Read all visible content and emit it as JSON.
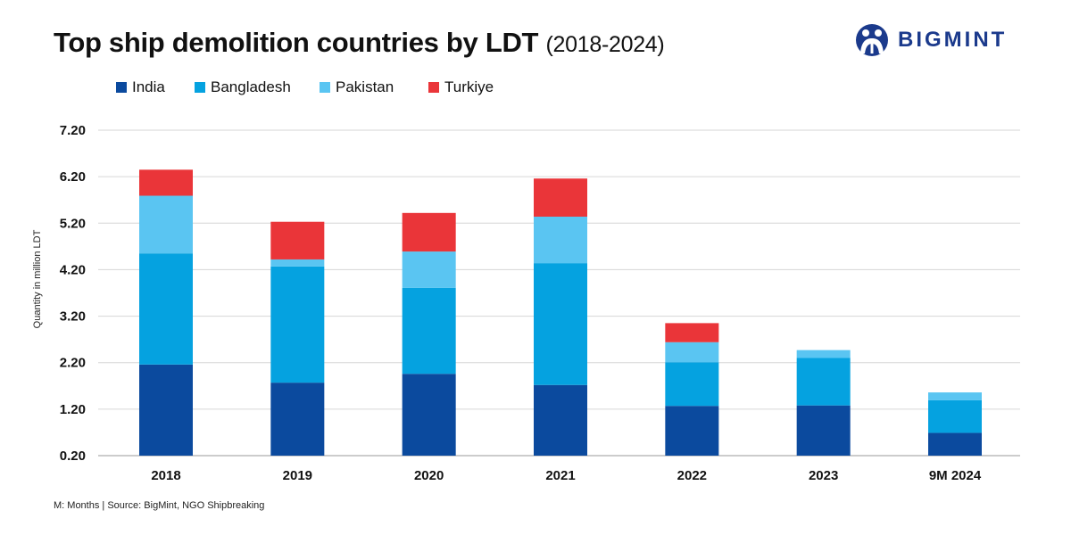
{
  "header": {
    "title": "Top ship demolition countries by LDT",
    "subtitle": "(2018-2024)"
  },
  "brand": {
    "name": "BIGMINT",
    "color": "#1b3a8c",
    "icon": "bigmint-logo-icon"
  },
  "footer": {
    "note_prefix": "M: Months | Source: ",
    "source_brand": "BigMint",
    "note_suffix": ", NGO Shipbreaking"
  },
  "chart_data": {
    "type": "bar",
    "stacked": true,
    "title": "Top ship demolition countries by LDT (2018-2024)",
    "xlabel": "",
    "ylabel": "Quantity in million LDT",
    "ylim": [
      0.2,
      7.2
    ],
    "yticks": [
      "0.20",
      "1.20",
      "2.20",
      "3.20",
      "4.20",
      "5.20",
      "6.20",
      "7.20"
    ],
    "grid": true,
    "legend_position": "top-left",
    "categories": [
      "2018",
      "2019",
      "2020",
      "2021",
      "2022",
      "2023",
      "9M 2024"
    ],
    "series": [
      {
        "name": "India",
        "color": "#0b4a9e",
        "values": [
          1.96,
          1.57,
          1.76,
          1.52,
          1.07,
          1.08,
          0.49
        ]
      },
      {
        "name": "Bangladesh",
        "color": "#05a2e0",
        "values": [
          2.39,
          2.5,
          1.85,
          2.62,
          0.94,
          1.02,
          0.7
        ]
      },
      {
        "name": "Pakistan",
        "color": "#5ac5f2",
        "values": [
          1.24,
          0.15,
          0.78,
          1.0,
          0.43,
          0.17,
          0.17
        ]
      },
      {
        "name": "Turkiye",
        "color": "#ea3539",
        "values": [
          0.56,
          0.81,
          0.83,
          0.82,
          0.41,
          0.0,
          0.0
        ]
      }
    ]
  }
}
